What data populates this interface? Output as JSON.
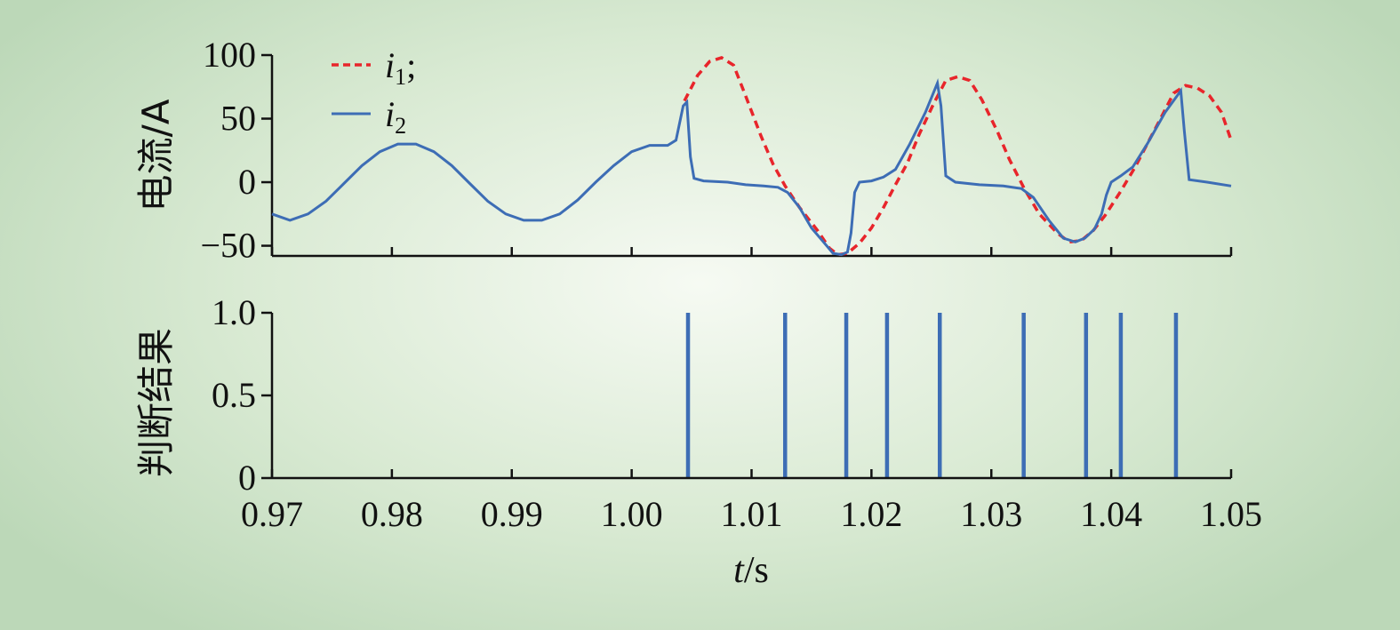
{
  "chart_data": [
    {
      "type": "line",
      "ylabel": "电流/A",
      "ylim": [
        -58,
        100
      ],
      "yticks": [
        -50,
        0,
        50,
        100
      ],
      "ytick_labels": [
        "−50",
        "0",
        "50",
        "100"
      ],
      "xlim": [
        0.97,
        1.05
      ],
      "xticks": [
        0.97,
        0.98,
        0.99,
        1.0,
        1.01,
        1.02,
        1.03,
        1.04,
        1.05
      ],
      "legend": {
        "position": "top-left",
        "entries": [
          {
            "symbol": "i",
            "subscript": "1",
            "suffix": ";",
            "style": "dashed",
            "color": "#e8252b"
          },
          {
            "symbol": "i",
            "subscript": "2",
            "suffix": "",
            "style": "solid",
            "color": "#3d6db5"
          }
        ]
      },
      "series": [
        {
          "name": "i1",
          "color": "#e8252b",
          "style": "dashed",
          "points": [
            [
              1.0044,
              64
            ],
            [
              1.0055,
              84
            ],
            [
              1.0065,
              95
            ],
            [
              1.0075,
              98
            ],
            [
              1.0085,
              92
            ],
            [
              1.0095,
              68
            ],
            [
              1.0108,
              36
            ],
            [
              1.0118,
              14
            ],
            [
              1.0128,
              -3
            ],
            [
              1.014,
              -20
            ],
            [
              1.0155,
              -38
            ],
            [
              1.0165,
              -52
            ],
            [
              1.0172,
              -57
            ],
            [
              1.018,
              -56
            ],
            [
              1.019,
              -48
            ],
            [
              1.02,
              -36
            ],
            [
              1.021,
              -20
            ],
            [
              1.022,
              -2
            ],
            [
              1.023,
              15
            ],
            [
              1.024,
              38
            ],
            [
              1.0252,
              62
            ],
            [
              1.0262,
              80
            ],
            [
              1.0272,
              83
            ],
            [
              1.0282,
              80
            ],
            [
              1.0292,
              65
            ],
            [
              1.0305,
              40
            ],
            [
              1.0315,
              18
            ],
            [
              1.0328,
              -6
            ],
            [
              1.034,
              -25
            ],
            [
              1.0355,
              -40
            ],
            [
              1.0365,
              -47
            ],
            [
              1.0375,
              -46
            ],
            [
              1.0385,
              -38
            ],
            [
              1.0395,
              -26
            ],
            [
              1.0408,
              -7
            ],
            [
              1.042,
              12
            ],
            [
              1.043,
              30
            ],
            [
              1.044,
              48
            ],
            [
              1.0452,
              70
            ],
            [
              1.0462,
              76
            ],
            [
              1.0472,
              74
            ],
            [
              1.0482,
              68
            ],
            [
              1.0492,
              55
            ],
            [
              1.05,
              33
            ]
          ]
        },
        {
          "name": "i2",
          "color": "#3d6db5",
          "style": "solid",
          "points": [
            [
              0.97,
              -25
            ],
            [
              0.9715,
              -30
            ],
            [
              0.973,
              -25
            ],
            [
              0.9745,
              -15
            ],
            [
              0.976,
              -1
            ],
            [
              0.9775,
              13
            ],
            [
              0.979,
              24
            ],
            [
              0.9805,
              30
            ],
            [
              0.982,
              30
            ],
            [
              0.9835,
              24
            ],
            [
              0.985,
              13
            ],
            [
              0.9865,
              -1
            ],
            [
              0.988,
              -15
            ],
            [
              0.9895,
              -25
            ],
            [
              0.991,
              -30
            ],
            [
              0.9925,
              -30
            ],
            [
              0.994,
              -25
            ],
            [
              0.9955,
              -14
            ],
            [
              0.997,
              0
            ],
            [
              0.9985,
              13
            ],
            [
              1.0,
              24
            ],
            [
              1.0015,
              29
            ],
            [
              1.003,
              29
            ],
            [
              1.0037,
              33
            ],
            [
              1.0043,
              60
            ],
            [
              1.0046,
              63
            ],
            [
              1.0049,
              20
            ],
            [
              1.0052,
              3
            ],
            [
              1.006,
              1
            ],
            [
              1.008,
              0
            ],
            [
              1.0095,
              -2
            ],
            [
              1.011,
              -3
            ],
            [
              1.0122,
              -4
            ],
            [
              1.013,
              -8
            ],
            [
              1.014,
              -20
            ],
            [
              1.015,
              -36
            ],
            [
              1.016,
              -47
            ],
            [
              1.0168,
              -56
            ],
            [
              1.0175,
              -57
            ],
            [
              1.018,
              -55
            ],
            [
              1.0183,
              -40
            ],
            [
              1.0186,
              -8
            ],
            [
              1.019,
              0
            ],
            [
              1.02,
              1
            ],
            [
              1.021,
              4
            ],
            [
              1.022,
              10
            ],
            [
              1.0232,
              30
            ],
            [
              1.0245,
              55
            ],
            [
              1.0255,
              78
            ],
            [
              1.0258,
              60
            ],
            [
              1.0262,
              5
            ],
            [
              1.027,
              0
            ],
            [
              1.029,
              -2
            ],
            [
              1.031,
              -3
            ],
            [
              1.0325,
              -5
            ],
            [
              1.0335,
              -12
            ],
            [
              1.0348,
              -30
            ],
            [
              1.036,
              -44
            ],
            [
              1.037,
              -47
            ],
            [
              1.0378,
              -44
            ],
            [
              1.0386,
              -37
            ],
            [
              1.0392,
              -25
            ],
            [
              1.0396,
              -10
            ],
            [
              1.04,
              0
            ],
            [
              1.0408,
              5
            ],
            [
              1.0418,
              12
            ],
            [
              1.043,
              30
            ],
            [
              1.0445,
              55
            ],
            [
              1.0458,
              72
            ],
            [
              1.0461,
              40
            ],
            [
              1.0465,
              2
            ],
            [
              1.048,
              0
            ],
            [
              1.05,
              -3
            ]
          ]
        }
      ]
    },
    {
      "type": "bar",
      "ylabel": "判断结果",
      "ylim": [
        0,
        1.0
      ],
      "yticks": [
        0,
        0.5,
        1.0
      ],
      "ytick_labels": [
        "0",
        "0.5",
        "1.0"
      ],
      "xlim": [
        0.97,
        1.05
      ],
      "xticks": [
        0.97,
        0.98,
        0.99,
        1.0,
        1.01,
        1.02,
        1.03,
        1.04,
        1.05
      ],
      "xtick_labels": [
        "0.97",
        "0.98",
        "0.99",
        "1.00",
        "1.01",
        "1.02",
        "1.03",
        "1.04",
        "1.05"
      ],
      "xlabel_var": "t",
      "xlabel_unit": "/s",
      "color": "#3d6db5",
      "pulses_x": [
        1.0047,
        1.0128,
        1.0179,
        1.0213,
        1.0257,
        1.0327,
        1.0379,
        1.0408,
        1.0454
      ],
      "pulses_y": [
        1,
        1,
        1,
        1,
        1,
        1,
        1,
        1,
        1
      ]
    }
  ]
}
